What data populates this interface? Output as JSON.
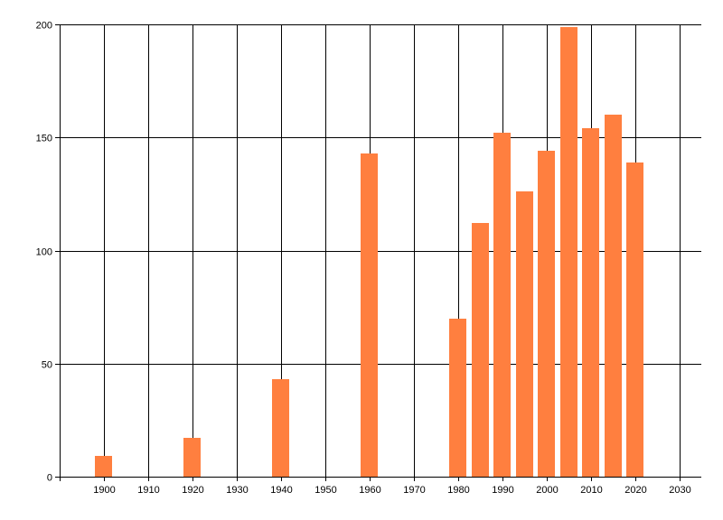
{
  "chart_data": {
    "type": "bar",
    "x": [
      1900,
      1920,
      1940,
      1960,
      1980,
      1985,
      1990,
      1995,
      2000,
      2005,
      2010,
      2015,
      2020
    ],
    "values": [
      9,
      17,
      43,
      143,
      70,
      112,
      152,
      126,
      144,
      199,
      154,
      160,
      139
    ],
    "xlim": [
      1890,
      2035
    ],
    "ylim": [
      0,
      200
    ],
    "x_ticks": [
      1900,
      1910,
      1920,
      1930,
      1940,
      1950,
      1960,
      1970,
      1980,
      1990,
      2000,
      2010,
      2020,
      2030
    ],
    "y_ticks": [
      0,
      50,
      100,
      150,
      200
    ],
    "title": "",
    "xlabel": "",
    "ylabel": "",
    "grid": true,
    "bar_color": "#FF7F3F"
  }
}
